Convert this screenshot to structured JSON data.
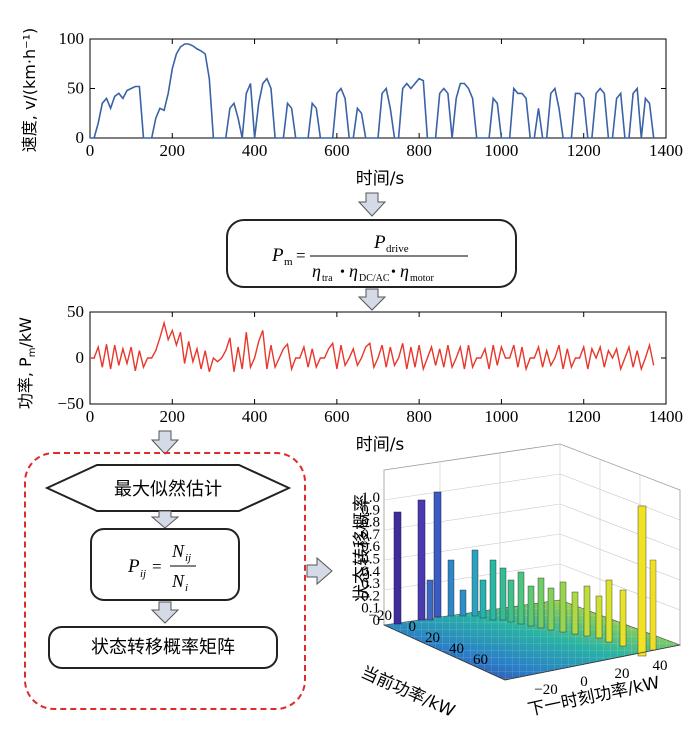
{
  "speed_chart": {
    "ylabel": "速度, v/(km·h⁻¹)",
    "xlabel": "时间/s",
    "yticks": [
      "100",
      "50",
      "0"
    ],
    "xticks": [
      "0",
      "200",
      "400",
      "600",
      "800",
      "1000",
      "1200",
      "1400"
    ]
  },
  "formula": {
    "lhs": "P",
    "lhs_sub": "m",
    "numerator": "P",
    "numerator_sub": "drive",
    "eta1_sub": "tra",
    "eta2_sub": "DC/AC",
    "eta3_sub": "motor"
  },
  "power_chart": {
    "ylabel": "功率, P",
    "ylabel_sub": "m",
    "ylabel_unit": "/kW",
    "xlabel": "时间/s",
    "yticks": [
      "50",
      "0",
      "−50"
    ],
    "xticks": [
      "0",
      "200",
      "400",
      "600",
      "800",
      "1000",
      "1200",
      "1400"
    ]
  },
  "process": {
    "mle_label": "最大似然估计",
    "pij_lhs": "P",
    "pij_lhs_sub": "ij",
    "pij_num": "N",
    "pij_num_sub": "ij",
    "pij_den": "N",
    "pij_den_sub": "i",
    "matrix_label": "状态转移概率矩阵"
  },
  "surface3d": {
    "zlabel": "状态转移概率",
    "zticks": [
      "1.0",
      "0.9",
      "0.8",
      "0.7",
      "0.6",
      "0.5",
      "0.4",
      "0.3",
      "0.2",
      "0.1",
      "0"
    ],
    "current_power_label": "当前功率/kW",
    "current_ticks": [
      "−20",
      "0",
      "20",
      "40",
      "60"
    ],
    "next_power_label": "下一时刻功率/kW",
    "next_ticks": [
      "−20",
      "0",
      "20",
      "40"
    ]
  },
  "colors": {
    "speed_line": "#3a62a7",
    "power_line": "#e8372b",
    "dashed_frame": "#e02b2b",
    "arrow_fill": "#d4dae6"
  },
  "chart_data": [
    {
      "type": "line",
      "xlabel": "时间/s",
      "ylabel": "速度, v/(km·h⁻¹)",
      "xlim": [
        0,
        1400
      ],
      "ylim": [
        0,
        100
      ],
      "series": [
        {
          "x": [
            0,
            10,
            20,
            30,
            40,
            50,
            60,
            70,
            80,
            90,
            100,
            110,
            120,
            130,
            140,
            150,
            160,
            170,
            180,
            190,
            200,
            210,
            220,
            230,
            240,
            250,
            260,
            270,
            280,
            290,
            300,
            310,
            320,
            330,
            340,
            350,
            360,
            370,
            380,
            390,
            400,
            410,
            420,
            430,
            440,
            450,
            460,
            470,
            480,
            490,
            500,
            510,
            520,
            530,
            540,
            550,
            560,
            570,
            580,
            590,
            600,
            610,
            620,
            630,
            640,
            650,
            660,
            670,
            680,
            690,
            700,
            710,
            720,
            730,
            740,
            750,
            760,
            770,
            780,
            790,
            800,
            810,
            820,
            830,
            840,
            850,
            860,
            870,
            880,
            890,
            900,
            910,
            920,
            930,
            940,
            950,
            960,
            970,
            980,
            990,
            1000,
            1010,
            1020,
            1030,
            1040,
            1050,
            1060,
            1070,
            1080,
            1090,
            1100,
            1110,
            1120,
            1130,
            1140,
            1150,
            1160,
            1170,
            1180,
            1190,
            1200,
            1210,
            1220,
            1230,
            1240,
            1250,
            1260,
            1270,
            1280,
            1290,
            1300,
            1310,
            1320,
            1330,
            1340,
            1350,
            1360,
            1370
          ],
          "y": [
            0,
            0,
            15,
            35,
            40,
            30,
            42,
            45,
            40,
            48,
            50,
            52,
            52,
            0,
            0,
            0,
            20,
            30,
            28,
            45,
            70,
            85,
            92,
            95,
            95,
            93,
            90,
            88,
            85,
            60,
            0,
            0,
            0,
            0,
            30,
            35,
            20,
            0,
            45,
            55,
            0,
            35,
            55,
            60,
            50,
            0,
            0,
            0,
            35,
            30,
            0,
            0,
            0,
            0,
            35,
            30,
            0,
            0,
            0,
            0,
            45,
            50,
            40,
            0,
            0,
            30,
            25,
            0,
            0,
            0,
            0,
            45,
            50,
            30,
            0,
            0,
            50,
            55,
            50,
            55,
            60,
            58,
            0,
            0,
            0,
            45,
            50,
            45,
            0,
            40,
            55,
            55,
            50,
            40,
            0,
            0,
            0,
            0,
            40,
            35,
            0,
            0,
            0,
            50,
            45,
            45,
            40,
            0,
            0,
            30,
            0,
            0,
            45,
            50,
            30,
            0,
            0,
            0,
            45,
            45,
            40,
            0,
            0,
            45,
            50,
            45,
            0,
            0,
            40,
            45,
            0,
            0,
            45,
            50,
            0,
            40,
            35,
            0
          ]
        }
      ]
    },
    {
      "type": "line",
      "xlabel": "时间/s",
      "ylabel": "功率, Pm/kW",
      "xlim": [
        0,
        1400
      ],
      "ylim": [
        -50,
        50
      ],
      "series": [
        {
          "x": [
            0,
            10,
            20,
            30,
            40,
            50,
            60,
            70,
            80,
            90,
            100,
            110,
            120,
            130,
            140,
            150,
            160,
            170,
            180,
            190,
            200,
            210,
            220,
            230,
            240,
            250,
            260,
            270,
            280,
            290,
            300,
            310,
            320,
            330,
            340,
            350,
            360,
            370,
            380,
            390,
            400,
            410,
            420,
            430,
            440,
            450,
            460,
            470,
            480,
            490,
            500,
            510,
            520,
            530,
            540,
            550,
            560,
            570,
            580,
            590,
            600,
            610,
            620,
            630,
            640,
            650,
            660,
            670,
            680,
            690,
            700,
            710,
            720,
            730,
            740,
            750,
            760,
            770,
            780,
            790,
            800,
            810,
            820,
            830,
            840,
            850,
            860,
            870,
            880,
            890,
            900,
            910,
            920,
            930,
            940,
            950,
            960,
            970,
            980,
            990,
            1000,
            1010,
            1020,
            1030,
            1040,
            1050,
            1060,
            1070,
            1080,
            1090,
            1100,
            1110,
            1120,
            1130,
            1140,
            1150,
            1160,
            1170,
            1180,
            1190,
            1200,
            1210,
            1220,
            1230,
            1240,
            1250,
            1260,
            1270,
            1280,
            1290,
            1300,
            1310,
            1320,
            1330,
            1340,
            1350,
            1360,
            1370
          ],
          "y": [
            0,
            0,
            12,
            -10,
            15,
            -12,
            14,
            -8,
            10,
            -6,
            12,
            -14,
            8,
            -10,
            0,
            0,
            8,
            22,
            38,
            20,
            30,
            14,
            28,
            -6,
            18,
            -4,
            10,
            -12,
            8,
            -15,
            0,
            -4,
            0,
            8,
            22,
            -15,
            12,
            -12,
            28,
            -10,
            0,
            18,
            30,
            -12,
            14,
            -10,
            0,
            10,
            15,
            -12,
            0,
            0,
            12,
            -10,
            10,
            -10,
            0,
            0,
            10,
            16,
            -12,
            14,
            -8,
            0,
            10,
            -8,
            0,
            12,
            16,
            -10,
            0,
            14,
            -10,
            12,
            -8,
            0,
            16,
            -12,
            12,
            -10,
            14,
            -12,
            0,
            12,
            -8,
            10,
            -10,
            14,
            -10,
            0,
            12,
            -12,
            14,
            -10,
            0,
            0,
            10,
            -12,
            14,
            -8,
            12,
            0,
            0,
            14,
            -10,
            12,
            -12,
            0,
            0,
            12,
            -10,
            8,
            -8,
            0,
            14,
            -12,
            10,
            -10,
            0,
            0,
            12,
            -12,
            10,
            0,
            12,
            -10,
            8,
            0,
            10,
            -12,
            0,
            12,
            -10,
            8,
            -12,
            0,
            14,
            -8
          ]
        }
      ]
    }
  ]
}
